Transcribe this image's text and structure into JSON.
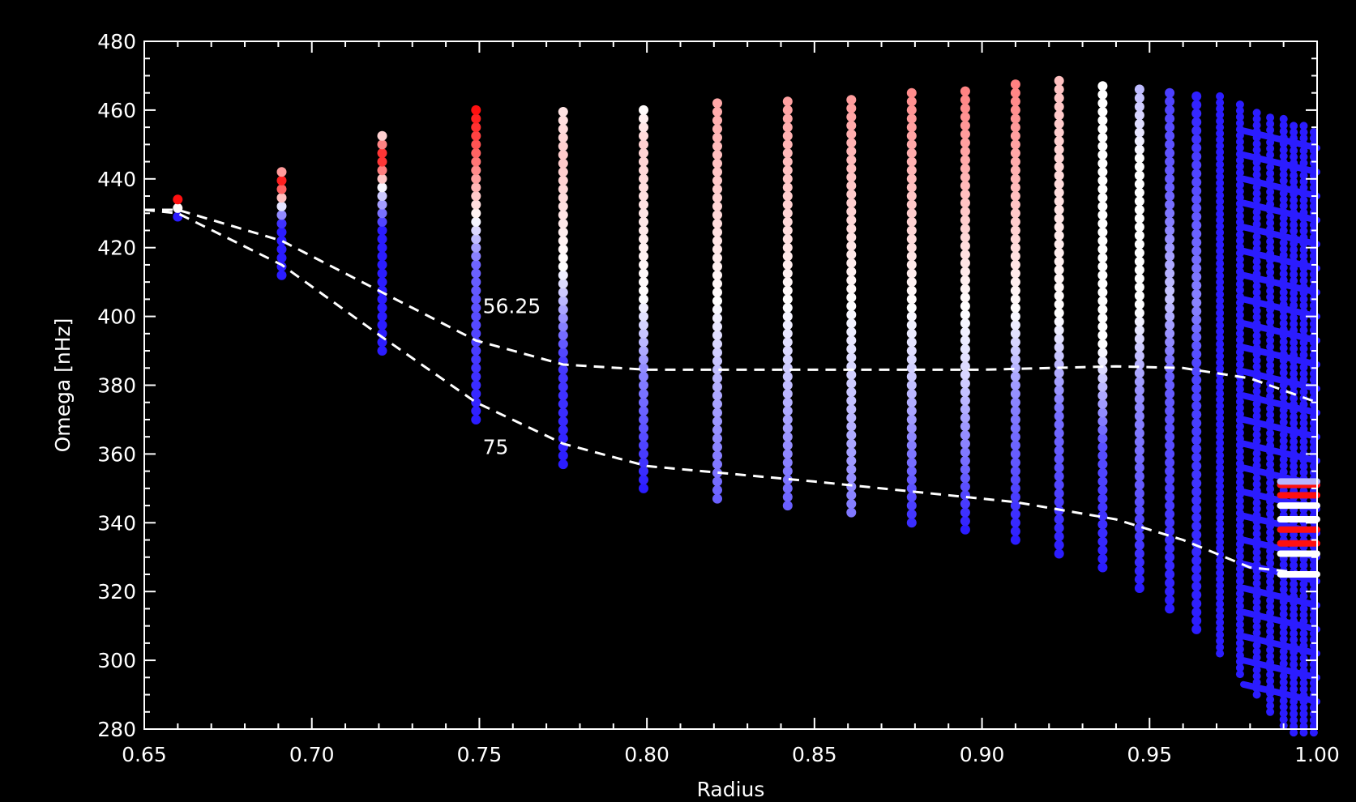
{
  "chart_data": {
    "type": "scatter",
    "title": "",
    "xlabel": "Radius",
    "ylabel": "Omega [nHz]",
    "xlim": [
      0.65,
      1.0
    ],
    "ylim": [
      280,
      480
    ],
    "x_ticks": [
      "0.65",
      "0.70",
      "0.75",
      "0.80",
      "0.85",
      "0.90",
      "0.95",
      "1.00"
    ],
    "y_ticks": [
      "280",
      "300",
      "320",
      "340",
      "360",
      "380",
      "400",
      "420",
      "440",
      "460",
      "480"
    ],
    "background": "#000000",
    "axis_color": "#ffffff",
    "color_scale": {
      "low": "#2b1cff",
      "mid": "#ffffff",
      "high": "#ff1010"
    },
    "columns": [
      {
        "x": 0.66,
        "ymin": 429,
        "ymax": 436,
        "stops": [
          [
            0,
            "#2b1cff"
          ],
          [
            0.35,
            "#ffffff"
          ],
          [
            0.7,
            "#ff1010"
          ],
          [
            1,
            "#ff1010"
          ]
        ]
      },
      {
        "x": 0.691,
        "ymin": 412,
        "ymax": 444,
        "stops": [
          [
            0,
            "#2b1cff"
          ],
          [
            0.45,
            "#2b1cff"
          ],
          [
            0.65,
            "#ffffff"
          ],
          [
            0.85,
            "#ff1010"
          ],
          [
            1,
            "#ffffff"
          ]
        ]
      },
      {
        "x": 0.721,
        "ymin": 390,
        "ymax": 454,
        "stops": [
          [
            0,
            "#2b1cff"
          ],
          [
            0.55,
            "#2b1cff"
          ],
          [
            0.75,
            "#ffffff"
          ],
          [
            0.88,
            "#ff1010"
          ],
          [
            1,
            "#ffffff"
          ]
        ]
      },
      {
        "x": 0.749,
        "ymin": 370,
        "ymax": 460,
        "stops": [
          [
            0,
            "#2b1cff"
          ],
          [
            0.5,
            "#6f65ff"
          ],
          [
            0.65,
            "#ffffff"
          ],
          [
            0.85,
            "#ff6a6a"
          ],
          [
            1,
            "#ff1010"
          ]
        ]
      },
      {
        "x": 0.775,
        "ymin": 357,
        "ymax": 461,
        "stops": [
          [
            0,
            "#2b1cff"
          ],
          [
            0.3,
            "#4a3dff"
          ],
          [
            0.55,
            "#ffffff"
          ],
          [
            0.85,
            "#ffc8c8"
          ],
          [
            1,
            "#ffe6e6"
          ]
        ]
      },
      {
        "x": 0.799,
        "ymin": 350,
        "ymax": 461,
        "stops": [
          [
            0,
            "#2b1cff"
          ],
          [
            0.3,
            "#8a84ff"
          ],
          [
            0.5,
            "#ffffff"
          ],
          [
            0.9,
            "#ffd0d0"
          ],
          [
            1,
            "#ffffff"
          ]
        ]
      },
      {
        "x": 0.821,
        "ymin": 347,
        "ymax": 462,
        "stops": [
          [
            0,
            "#6a60ff"
          ],
          [
            0.3,
            "#b7b3ff"
          ],
          [
            0.5,
            "#ffffff"
          ],
          [
            1,
            "#ffa8a8"
          ]
        ]
      },
      {
        "x": 0.842,
        "ymin": 345,
        "ymax": 463,
        "stops": [
          [
            0,
            "#6a60ff"
          ],
          [
            0.3,
            "#c2beff"
          ],
          [
            0.5,
            "#ffffff"
          ],
          [
            1,
            "#ffa0a0"
          ]
        ]
      },
      {
        "x": 0.861,
        "ymin": 343,
        "ymax": 465,
        "stops": [
          [
            0,
            "#8078ff"
          ],
          [
            0.35,
            "#d8d6ff"
          ],
          [
            0.5,
            "#ffffff"
          ],
          [
            1,
            "#ff9a9a"
          ]
        ]
      },
      {
        "x": 0.879,
        "ymin": 340,
        "ymax": 466,
        "stops": [
          [
            0,
            "#3a2dff"
          ],
          [
            0.35,
            "#d0ceff"
          ],
          [
            0.5,
            "#ffffff"
          ],
          [
            1,
            "#ff8a8a"
          ]
        ]
      },
      {
        "x": 0.895,
        "ymin": 338,
        "ymax": 467,
        "stops": [
          [
            0,
            "#2b1cff"
          ],
          [
            0.35,
            "#d8d6ff"
          ],
          [
            0.5,
            "#ffffff"
          ],
          [
            1,
            "#ff8080"
          ]
        ]
      },
      {
        "x": 0.91,
        "ymin": 335,
        "ymax": 468,
        "stops": [
          [
            0,
            "#2b1cff"
          ],
          [
            0.3,
            "#8a84ff"
          ],
          [
            0.5,
            "#ffffff"
          ],
          [
            1,
            "#ff8080"
          ]
        ]
      },
      {
        "x": 0.923,
        "ymin": 331,
        "ymax": 469,
        "stops": [
          [
            0,
            "#2b1cff"
          ],
          [
            0.3,
            "#7b73ff"
          ],
          [
            0.5,
            "#ffffff"
          ],
          [
            1,
            "#ffc0c0"
          ]
        ]
      },
      {
        "x": 0.936,
        "ymin": 327,
        "ymax": 469,
        "stops": [
          [
            0,
            "#2b1cff"
          ],
          [
            0.25,
            "#5a50ff"
          ],
          [
            0.45,
            "#ffffff"
          ],
          [
            1,
            "#ffffff"
          ]
        ]
      },
      {
        "x": 0.947,
        "ymin": 321,
        "ymax": 468,
        "stops": [
          [
            0,
            "#2b1cff"
          ],
          [
            0.4,
            "#9a94ff"
          ],
          [
            0.55,
            "#ffffff"
          ],
          [
            0.85,
            "#ffffff"
          ],
          [
            1,
            "#b8b4ff"
          ]
        ]
      },
      {
        "x": 0.956,
        "ymin": 315,
        "ymax": 467,
        "stops": [
          [
            0,
            "#2b1cff"
          ],
          [
            0.45,
            "#6a60ff"
          ],
          [
            0.6,
            "#c8c5ff"
          ],
          [
            0.8,
            "#6a60ff"
          ],
          [
            1,
            "#4a3dff"
          ]
        ]
      },
      {
        "x": 0.964,
        "ymin": 309,
        "ymax": 466,
        "stops": [
          [
            0,
            "#2b1cff"
          ],
          [
            0.5,
            "#5048ff"
          ],
          [
            0.6,
            "#8a84ff"
          ],
          [
            1,
            "#2b1cff"
          ]
        ]
      },
      {
        "x": 0.971,
        "ymin": 302,
        "ymax": 464,
        "stops": [
          [
            0,
            "#2b1cff"
          ],
          [
            1,
            "#2b1cff"
          ]
        ]
      },
      {
        "x": 0.977,
        "ymin": 296,
        "ymax": 462,
        "stops": [
          [
            0,
            "#2b1cff"
          ],
          [
            1,
            "#2b1cff"
          ]
        ]
      },
      {
        "x": 0.982,
        "ymin": 290,
        "ymax": 460,
        "stops": [
          [
            0,
            "#2b1cff"
          ],
          [
            1,
            "#2b1cff"
          ]
        ]
      },
      {
        "x": 0.986,
        "ymin": 285,
        "ymax": 459,
        "stops": [
          [
            0,
            "#2b1cff"
          ],
          [
            1,
            "#2b1cff"
          ]
        ]
      },
      {
        "x": 0.99,
        "ymin": 281,
        "ymax": 458,
        "stops": [
          [
            0,
            "#2b1cff"
          ],
          [
            1,
            "#2b1cff"
          ]
        ]
      },
      {
        "x": 0.993,
        "ymin": 279,
        "ymax": 457,
        "stops": [
          [
            0,
            "#2b1cff"
          ],
          [
            1,
            "#2b1cff"
          ]
        ]
      },
      {
        "x": 0.996,
        "ymin": 279,
        "ymax": 456,
        "stops": [
          [
            0,
            "#2b1cff"
          ],
          [
            1,
            "#2b1cff"
          ]
        ]
      },
      {
        "x": 0.999,
        "ymin": 279,
        "ymax": 455,
        "stops": [
          [
            0,
            "#2b1cff"
          ],
          [
            1,
            "#2b1cff"
          ]
        ]
      }
    ],
    "surface_bands": [
      {
        "y": 351,
        "color": "#ff1010"
      },
      {
        "y": 348,
        "color": "#ff1010"
      },
      {
        "y": 345,
        "color": "#ffffff"
      },
      {
        "y": 341,
        "color": "#ffffff"
      },
      {
        "y": 338,
        "color": "#ff1010"
      },
      {
        "y": 334,
        "color": "#ff1010"
      },
      {
        "y": 331,
        "color": "#ffffff"
      },
      {
        "y": 325,
        "color": "#ffffff"
      },
      {
        "y": 352,
        "color": "#b8b4ff"
      }
    ],
    "contours": [
      {
        "label": "56.25",
        "label_at": [
          0.751,
          401
        ],
        "points": [
          [
            0.65,
            431
          ],
          [
            0.66,
            431
          ],
          [
            0.691,
            422
          ],
          [
            0.721,
            407
          ],
          [
            0.749,
            393
          ],
          [
            0.775,
            386
          ],
          [
            0.8,
            384.5
          ],
          [
            0.85,
            384.5
          ],
          [
            0.9,
            384.5
          ],
          [
            0.94,
            385.5
          ],
          [
            0.96,
            385
          ],
          [
            0.98,
            382
          ],
          [
            1.0,
            375
          ]
        ]
      },
      {
        "label": "75",
        "label_at": [
          0.751,
          360
        ],
        "points": [
          [
            0.65,
            431
          ],
          [
            0.66,
            430
          ],
          [
            0.691,
            415
          ],
          [
            0.721,
            394
          ],
          [
            0.749,
            375
          ],
          [
            0.775,
            363
          ],
          [
            0.8,
            356.5
          ],
          [
            0.85,
            352
          ],
          [
            0.88,
            349
          ],
          [
            0.91,
            346
          ],
          [
            0.94,
            341
          ],
          [
            0.96,
            335
          ],
          [
            0.98,
            327
          ],
          [
            1.0,
            325
          ]
        ]
      }
    ]
  }
}
